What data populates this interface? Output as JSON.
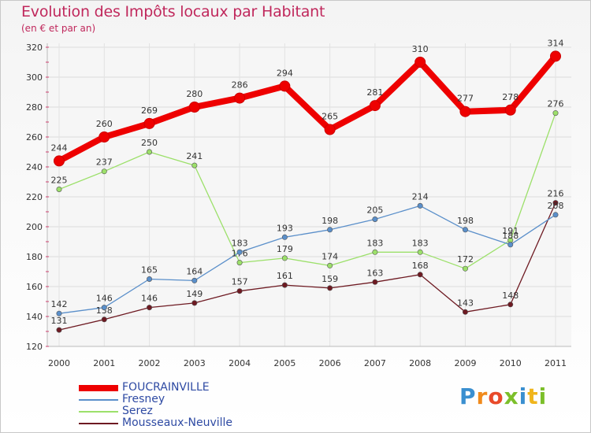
{
  "header": {
    "title": "Evolution des Impôts locaux par Habitant",
    "subtitle": "(en € et par an)"
  },
  "chart_data": {
    "type": "line",
    "title": "Evolution des Impôts locaux par Habitant",
    "subtitle": "(en € et par an)",
    "xlabel": "",
    "ylabel": "",
    "ylim": [
      120,
      320
    ],
    "yticks": [
      "120",
      "140",
      "160",
      "180",
      "200",
      "220",
      "240",
      "260",
      "280",
      "300",
      "320"
    ],
    "x": [
      "2000",
      "2001",
      "2002",
      "2003",
      "2004",
      "2005",
      "2006",
      "2007",
      "2008",
      "2009",
      "2010",
      "2011"
    ],
    "grid": true,
    "legend_position": "bottom-left",
    "series": [
      {
        "name": "Mousseaux-Neuville",
        "color": "#6e1a22",
        "values": [
          131,
          138,
          146,
          149,
          157,
          161,
          159,
          163,
          168,
          143,
          148,
          216
        ]
      },
      {
        "name": "Serez",
        "color": "#9ce06a",
        "values": [
          225,
          237,
          250,
          241,
          176,
          179,
          174,
          183,
          183,
          172,
          191,
          276
        ]
      },
      {
        "name": "Fresney",
        "color": "#5a8fca",
        "values": [
          142,
          146,
          165,
          164,
          183,
          193,
          198,
          205,
          214,
          198,
          188,
          208
        ]
      },
      {
        "name": "FOUCRAINVILLE",
        "color": "#ee0000",
        "values": [
          244,
          260,
          269,
          280,
          286,
          294,
          265,
          281,
          310,
          277,
          278,
          314
        ]
      }
    ]
  },
  "legend": {
    "items": [
      {
        "label": "FOUCRAINVILLE",
        "color": "#ee0000"
      },
      {
        "label": "Fresney",
        "color": "#5a8fca"
      },
      {
        "label": "Serez",
        "color": "#9ce06a"
      },
      {
        "label": "Mousseaux-Neuville",
        "color": "#6e1a22"
      }
    ]
  },
  "logo": {
    "letters": [
      "P",
      "r",
      "o",
      "x",
      "i",
      "t",
      "i"
    ],
    "colors": [
      "#3a8fd0",
      "#f08a1c",
      "#e84a2a",
      "#7cbf2a",
      "#3a8fd0",
      "#f0b51c",
      "#7cbf2a"
    ]
  }
}
